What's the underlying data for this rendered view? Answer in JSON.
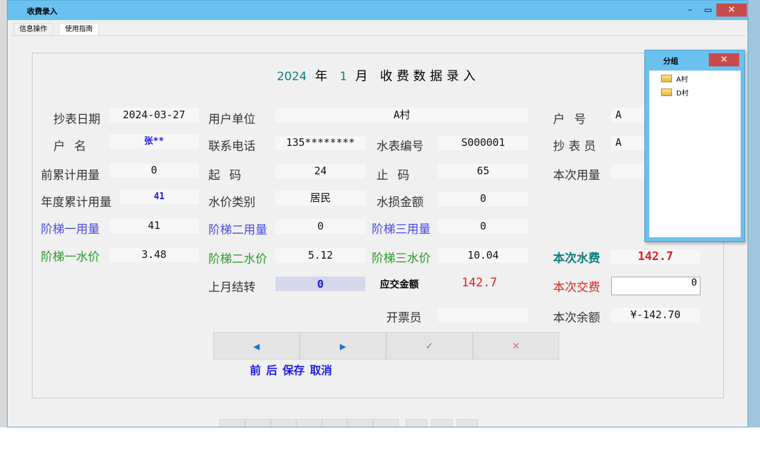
{
  "window": {
    "title": "收费录入",
    "minimize_icon": "minimize-icon",
    "maximize_icon": "maximize-icon",
    "close_icon": "close-icon"
  },
  "tabs": [
    {
      "label": "信息操作"
    },
    {
      "label": "使用指南"
    }
  ],
  "heading": {
    "year": "2024",
    "year_suffix": "年",
    "month": "1",
    "month_suffix": "月",
    "title": "收费数据录入"
  },
  "fields": {
    "read_date": {
      "label": "抄表日期",
      "value": "2024-03-27"
    },
    "user_unit": {
      "label": "用户单位",
      "value": "A村"
    },
    "account_no": {
      "label": "户 号",
      "value": "A"
    },
    "account_name": {
      "label": "户 名",
      "value": "张**"
    },
    "phone": {
      "label": "联系电话",
      "value": "135********"
    },
    "meter_no": {
      "label": "水表编号",
      "value": "S000001"
    },
    "reader": {
      "label": "抄 表 员",
      "value": "A"
    },
    "prev_total": {
      "label": "前累计用量",
      "value": "0"
    },
    "start_code": {
      "label": "起 码",
      "value": "24"
    },
    "end_code": {
      "label": "止 码",
      "value": "65"
    },
    "current_usage": {
      "label": "本次用量",
      "value": ""
    },
    "annual_total": {
      "label": "年度累计用量",
      "value": "41"
    },
    "price_type": {
      "label": "水价类别",
      "value": "居民"
    },
    "loss_amount": {
      "label": "水损金额",
      "value": "0"
    },
    "tier1_usage": {
      "label": "阶梯一用量",
      "value": "41"
    },
    "tier2_usage": {
      "label": "阶梯二用量",
      "value": "0"
    },
    "tier3_usage": {
      "label": "阶梯三用量",
      "value": "0"
    },
    "tier1_price": {
      "label": "阶梯一水价",
      "value": "3.48"
    },
    "tier2_price": {
      "label": "阶梯二水价",
      "value": "5.12"
    },
    "tier3_price": {
      "label": "阶梯三水价",
      "value": "10.04"
    },
    "water_fee": {
      "label": "本次水费",
      "value": "142.7"
    },
    "last_carry": {
      "label": "上月结转",
      "value": "0"
    },
    "amount_due": {
      "label": "应交金额",
      "value": "142.7"
    },
    "payment": {
      "label": "本次交费",
      "value": "0"
    },
    "invoicer": {
      "label": "开票员",
      "value": ""
    },
    "balance": {
      "label": "本次余额",
      "value": "¥-142.70"
    }
  },
  "buttons": {
    "prev_icon": "◀",
    "next_icon": "▶",
    "save_icon": "✓",
    "cancel_icon": "✕",
    "labels": "前 后 保存 取消"
  },
  "popup": {
    "title": "分组",
    "close_icon": "✕",
    "items": [
      {
        "label": "A村"
      },
      {
        "label": "D村"
      }
    ]
  },
  "colors": {
    "titlebar": "#6ac1f0",
    "close": "#c94c4c",
    "teal": "#0a8080",
    "red": "#e02020",
    "blue": "#1a1ae6",
    "green": "#2a9a2a"
  }
}
